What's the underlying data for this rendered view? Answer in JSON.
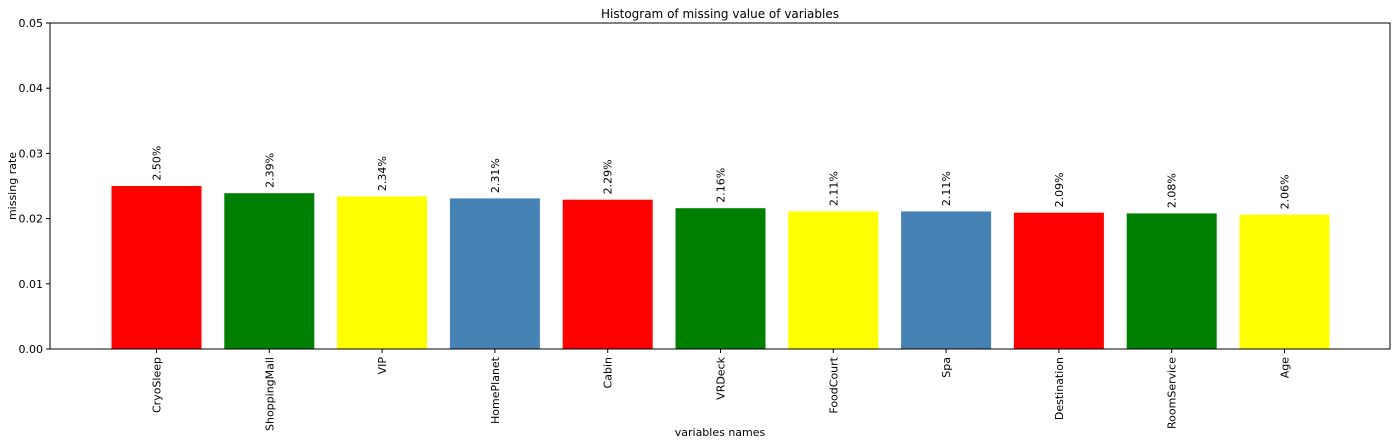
{
  "chart_data": {
    "type": "bar",
    "title": "Histogram of missing value of variables",
    "xlabel": "variables names",
    "ylabel": "missing rate",
    "ylim": [
      0,
      0.05
    ],
    "yticks": [
      "0.00",
      "0.01",
      "0.02",
      "0.03",
      "0.04",
      "0.05"
    ],
    "ytick_values": [
      0,
      0.01,
      0.02,
      0.03,
      0.04,
      0.05
    ],
    "categories": [
      "CryoSleep",
      "ShoppingMall",
      "VIP",
      "HomePlanet",
      "Cabin",
      "VRDeck",
      "FoodCourt",
      "Spa",
      "Destination",
      "RoomService",
      "Age"
    ],
    "values": [
      0.025,
      0.0239,
      0.0234,
      0.0231,
      0.0229,
      0.0216,
      0.0211,
      0.0211,
      0.0209,
      0.0208,
      0.0206
    ],
    "data_labels": [
      "2.50%",
      "2.39%",
      "2.34%",
      "2.31%",
      "2.29%",
      "2.16%",
      "2.11%",
      "2.11%",
      "2.09%",
      "2.08%",
      "2.06%"
    ],
    "colors": [
      "#ff0000",
      "#008000",
      "#ffff00",
      "#4682b4",
      "#ff0000",
      "#008000",
      "#ffff00",
      "#4682b4",
      "#ff0000",
      "#008000",
      "#ffff00"
    ],
    "grid": false,
    "legend": "none"
  }
}
